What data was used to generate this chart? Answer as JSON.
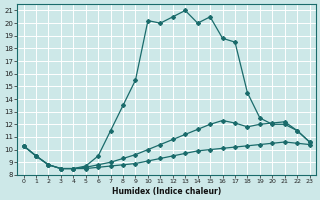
{
  "xlabel": "Humidex (Indice chaleur)",
  "bg_color": "#cde8e8",
  "grid_color": "#ffffff",
  "line_color": "#1a6b6b",
  "xlim": [
    -0.5,
    23.5
  ],
  "ylim": [
    8.0,
    21.5
  ],
  "xticks": [
    0,
    1,
    2,
    3,
    4,
    5,
    6,
    7,
    8,
    9,
    10,
    11,
    12,
    13,
    14,
    15,
    16,
    17,
    18,
    19,
    20,
    21,
    22,
    23
  ],
  "yticks": [
    8,
    9,
    10,
    11,
    12,
    13,
    14,
    15,
    16,
    17,
    18,
    19,
    20,
    21
  ],
  "line1_x": [
    0,
    1,
    2,
    3,
    4,
    5,
    6,
    7,
    8,
    9,
    10,
    11,
    12,
    13,
    14,
    15,
    16,
    17,
    18,
    19,
    20,
    21,
    22,
    23
  ],
  "line1_y": [
    10.3,
    9.5,
    8.8,
    8.5,
    8.5,
    8.5,
    8.6,
    8.7,
    8.8,
    8.9,
    9.1,
    9.3,
    9.5,
    9.7,
    9.9,
    10.0,
    10.1,
    10.2,
    10.3,
    10.4,
    10.5,
    10.6,
    10.5,
    10.4
  ],
  "line2_x": [
    0,
    1,
    2,
    3,
    4,
    5,
    6,
    7,
    8,
    9,
    10,
    11,
    12,
    13,
    14,
    15,
    16,
    17,
    18,
    19,
    20,
    21,
    22,
    23
  ],
  "line2_y": [
    10.3,
    9.5,
    8.8,
    8.5,
    8.5,
    8.6,
    8.8,
    9.0,
    9.3,
    9.6,
    10.0,
    10.4,
    10.8,
    11.2,
    11.6,
    12.0,
    12.3,
    12.1,
    11.8,
    12.0,
    12.1,
    12.2,
    11.5,
    10.6
  ],
  "line3_x": [
    0,
    1,
    2,
    3,
    4,
    5,
    6,
    7,
    8,
    9,
    10,
    11,
    12,
    13,
    14,
    15,
    16,
    17,
    18,
    19,
    20,
    21,
    22,
    23
  ],
  "line3_y": [
    10.3,
    9.5,
    8.8,
    8.5,
    8.5,
    8.7,
    9.5,
    11.5,
    13.5,
    15.5,
    20.2,
    20.0,
    20.5,
    21.0,
    20.0,
    20.5,
    18.8,
    18.5,
    14.5,
    12.5,
    12.0,
    12.0,
    11.5,
    10.6
  ]
}
